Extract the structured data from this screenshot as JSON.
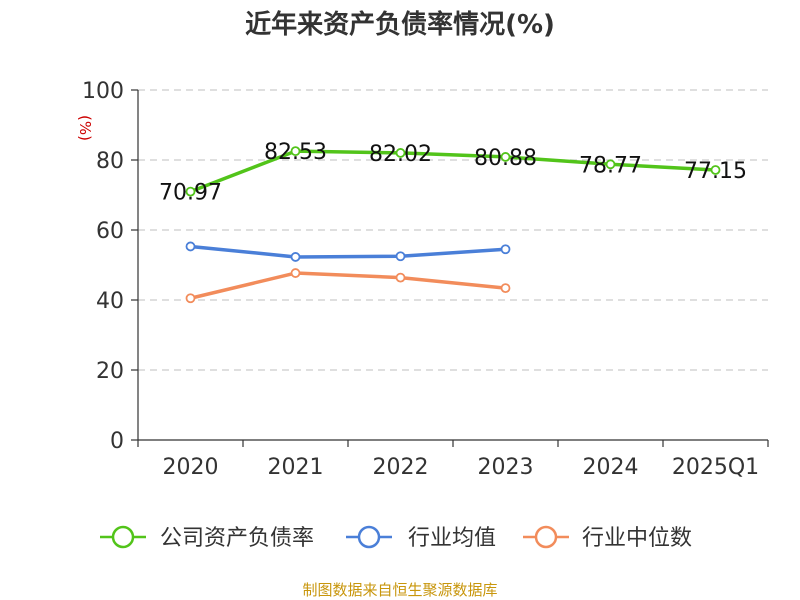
{
  "chart_data": {
    "type": "line",
    "title": "近年来资产负债率情况(%)",
    "ylabel": "(%)",
    "categories": [
      "2020",
      "2021",
      "2022",
      "2023",
      "2024",
      "2025Q1"
    ],
    "ylim": [
      0,
      100
    ],
    "yticks": [
      0,
      20,
      40,
      60,
      80,
      100
    ],
    "grid": true,
    "legend_position": "bottom",
    "series": [
      {
        "name": "公司资产负债率",
        "color": "#52c41a",
        "values": [
          70.97,
          82.53,
          82.02,
          80.88,
          78.77,
          77.15
        ],
        "labels": [
          "70.97",
          "82.53",
          "82.02",
          "80.88",
          "78.77",
          "77.15"
        ]
      },
      {
        "name": "行业均值",
        "color": "#4a7fd8",
        "values": [
          55.3,
          52.3,
          52.5,
          54.5,
          null,
          null
        ]
      },
      {
        "name": "行业中位数",
        "color": "#f28c5b",
        "values": [
          40.5,
          47.7,
          46.4,
          43.4,
          null,
          null
        ]
      }
    ],
    "source": "制图数据来自恒生聚源数据库"
  }
}
